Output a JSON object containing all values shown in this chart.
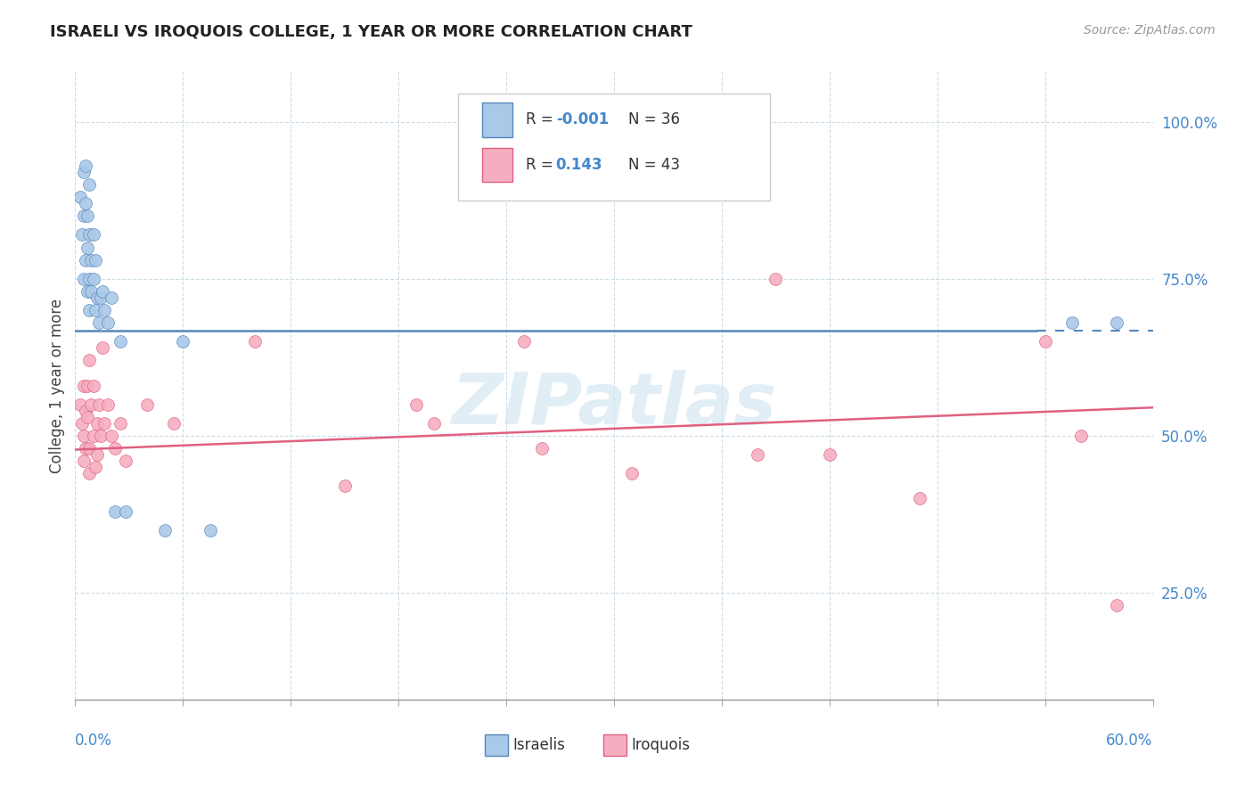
{
  "title": "ISRAELI VS IROQUOIS COLLEGE, 1 YEAR OR MORE CORRELATION CHART",
  "source_text": "Source: ZipAtlas.com",
  "ylabel": "College, 1 year or more",
  "ytick_labels": [
    "25.0%",
    "50.0%",
    "75.0%",
    "100.0%"
  ],
  "ytick_values": [
    0.25,
    0.5,
    0.75,
    1.0
  ],
  "xlim": [
    0.0,
    0.6
  ],
  "ylim": [
    0.08,
    1.08
  ],
  "legend_r1": "-0.001",
  "legend_n1": "N = 36",
  "legend_r2": "0.143",
  "legend_n2": "N = 43",
  "color_israelis": "#aac8e8",
  "color_iroquois": "#f5aec0",
  "line_color_israelis": "#5588bb",
  "line_color_iroquois": "#e06080",
  "watermark": "ZIPatlas",
  "israelis_x": [
    0.003,
    0.004,
    0.005,
    0.005,
    0.005,
    0.006,
    0.006,
    0.006,
    0.007,
    0.007,
    0.007,
    0.008,
    0.008,
    0.008,
    0.008,
    0.009,
    0.009,
    0.01,
    0.01,
    0.011,
    0.011,
    0.012,
    0.013,
    0.014,
    0.015,
    0.016,
    0.018,
    0.02,
    0.022,
    0.025,
    0.028,
    0.05,
    0.06,
    0.075,
    0.555,
    0.58
  ],
  "israelis_y": [
    0.88,
    0.82,
    0.92,
    0.85,
    0.75,
    0.93,
    0.87,
    0.78,
    0.85,
    0.8,
    0.73,
    0.9,
    0.82,
    0.75,
    0.7,
    0.78,
    0.73,
    0.82,
    0.75,
    0.78,
    0.7,
    0.72,
    0.68,
    0.72,
    0.73,
    0.7,
    0.68,
    0.72,
    0.38,
    0.65,
    0.38,
    0.35,
    0.65,
    0.35,
    0.68,
    0.68
  ],
  "iroquois_x": [
    0.003,
    0.004,
    0.005,
    0.005,
    0.005,
    0.006,
    0.006,
    0.007,
    0.007,
    0.008,
    0.008,
    0.008,
    0.009,
    0.01,
    0.01,
    0.011,
    0.012,
    0.012,
    0.013,
    0.014,
    0.015,
    0.016,
    0.018,
    0.02,
    0.022,
    0.025,
    0.028,
    0.04,
    0.055,
    0.1,
    0.15,
    0.19,
    0.2,
    0.25,
    0.26,
    0.31,
    0.38,
    0.39,
    0.42,
    0.47,
    0.54,
    0.56,
    0.58
  ],
  "iroquois_y": [
    0.55,
    0.52,
    0.58,
    0.5,
    0.46,
    0.54,
    0.48,
    0.58,
    0.53,
    0.62,
    0.48,
    0.44,
    0.55,
    0.58,
    0.5,
    0.45,
    0.52,
    0.47,
    0.55,
    0.5,
    0.64,
    0.52,
    0.55,
    0.5,
    0.48,
    0.52,
    0.46,
    0.55,
    0.52,
    0.65,
    0.42,
    0.55,
    0.52,
    0.65,
    0.48,
    0.44,
    0.47,
    0.75,
    0.47,
    0.4,
    0.65,
    0.5,
    0.23
  ],
  "blue_line_solid_end": 0.535,
  "blue_line_y": 0.668,
  "pink_line_start_y": 0.478,
  "pink_line_end_y": 0.545
}
